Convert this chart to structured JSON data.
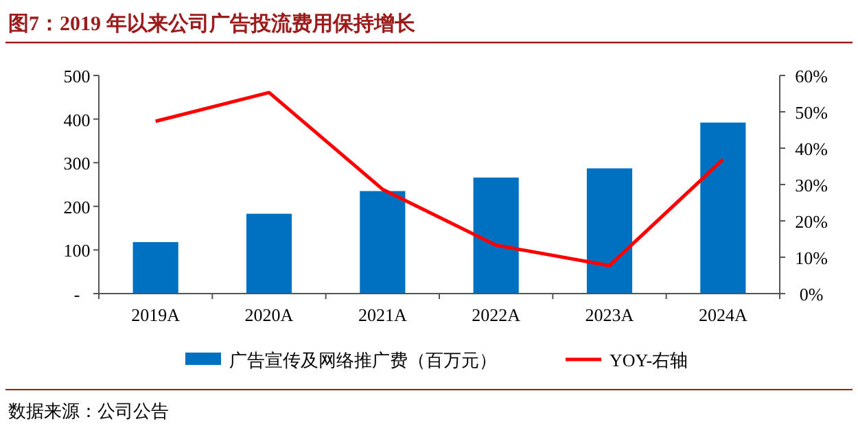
{
  "chart_data": {
    "type": "bar",
    "title": "图7：2019 年以来公司广告投流费用保持增长",
    "categories": [
      "2019A",
      "2020A",
      "2021A",
      "2022A",
      "2023A",
      "2024A"
    ],
    "series": [
      {
        "name": "广告宣传及网络推广费（百万元）",
        "color": "#0070c0",
        "values": [
          118,
          183,
          235,
          266,
          287,
          392
        ]
      },
      {
        "name": "YOY-右轴",
        "type": "line",
        "axis": "y2",
        "color": "#ff0000",
        "values": [
          47.4,
          55.3,
          28.7,
          13.3,
          7.7,
          36.9
        ]
      }
    ],
    "ylim": [
      0,
      500
    ],
    "yticks": [
      {
        "value": 0,
        "label": "-"
      },
      100,
      200,
      300,
      400,
      500
    ],
    "y2lim": [
      0,
      60
    ],
    "y2ticks": [
      {
        "value": 0,
        "label": "0%"
      },
      {
        "value": 10,
        "label": "10%"
      },
      {
        "value": 20,
        "label": "20%"
      },
      {
        "value": 30,
        "label": "30%"
      },
      {
        "value": 40,
        "label": "40%"
      },
      {
        "value": 50,
        "label": "50%"
      },
      {
        "value": 60,
        "label": "60%"
      }
    ],
    "legend": "bottom",
    "grid": false,
    "annotations": [
      "数据来源：公司公告"
    ]
  }
}
